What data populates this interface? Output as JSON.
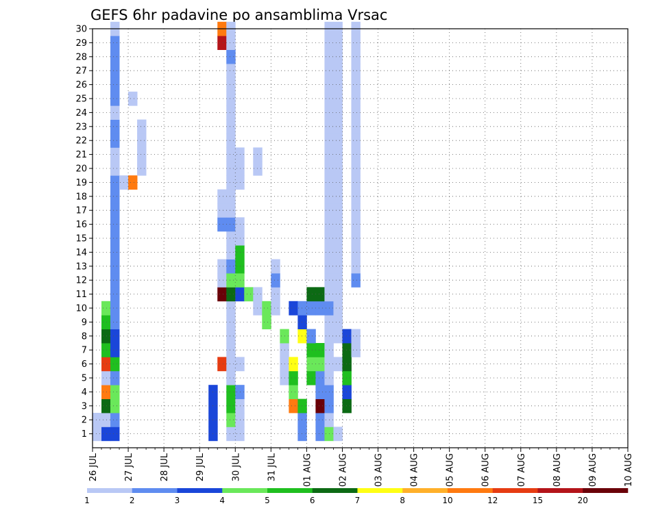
{
  "chart_data": {
    "type": "heatmap",
    "title": "GEFS 6hr padavine po ansamblima Vrsac",
    "xlabel": "",
    "ylabel": "",
    "x_ticks": [
      "26 JUL",
      "27 JUL",
      "28 JUL",
      "29 JUL",
      "30 JUL",
      "31 JUL",
      "01 AUG",
      "02 AUG",
      "03 AUG",
      "04 AUG",
      "05 AUG",
      "06 AUG",
      "07 AUG",
      "08 AUG",
      "09 AUG",
      "10 AUG"
    ],
    "y_ticks": [
      1,
      2,
      3,
      4,
      5,
      6,
      7,
      8,
      9,
      10,
      11,
      12,
      13,
      14,
      15,
      16,
      17,
      18,
      19,
      20,
      21,
      22,
      23,
      24,
      25,
      26,
      27,
      28,
      29,
      30
    ],
    "grid": true,
    "colorbar": {
      "position": "bottom",
      "levels": [
        "1",
        "2",
        "3",
        "4",
        "5",
        "6",
        "7",
        "8",
        "10",
        "12",
        "15",
        "20"
      ],
      "colors": [
        "#b9c8f5",
        "#5f8cf0",
        "#1a46d9",
        "#6ae85a",
        "#1fbf1f",
        "#0c6a14",
        "#ffff14",
        "#ffb02a",
        "#ff7a10",
        "#e63c12",
        "#b4141a",
        "#6a0008"
      ]
    },
    "step_hours": 6,
    "cells": [
      [
        1,
        1,
        0
      ],
      [
        1,
        2,
        0
      ],
      [
        2,
        1,
        2
      ],
      [
        2,
        2,
        0
      ],
      [
        2,
        3,
        5
      ],
      [
        2,
        4,
        8
      ],
      [
        2,
        5,
        0
      ],
      [
        2,
        6,
        9
      ],
      [
        2,
        7,
        4
      ],
      [
        2,
        8,
        5
      ],
      [
        2,
        9,
        4
      ],
      [
        2,
        10,
        3
      ],
      [
        3,
        1,
        2
      ],
      [
        3,
        2,
        1
      ],
      [
        3,
        3,
        3
      ],
      [
        3,
        4,
        3
      ],
      [
        3,
        5,
        1
      ],
      [
        3,
        6,
        4
      ],
      [
        3,
        7,
        2
      ],
      [
        3,
        8,
        2
      ],
      [
        3,
        9,
        1
      ],
      [
        3,
        10,
        1
      ],
      [
        3,
        11,
        1
      ],
      [
        3,
        12,
        1
      ],
      [
        3,
        13,
        1
      ],
      [
        3,
        14,
        1
      ],
      [
        3,
        15,
        1
      ],
      [
        3,
        16,
        1
      ],
      [
        3,
        17,
        1
      ],
      [
        3,
        18,
        1
      ],
      [
        3,
        19,
        1
      ],
      [
        3,
        20,
        0
      ],
      [
        3,
        21,
        0
      ],
      [
        3,
        22,
        1
      ],
      [
        3,
        23,
        1
      ],
      [
        3,
        24,
        0
      ],
      [
        3,
        25,
        1
      ],
      [
        3,
        26,
        1
      ],
      [
        3,
        27,
        1
      ],
      [
        3,
        28,
        1
      ],
      [
        3,
        29,
        1
      ],
      [
        3,
        30,
        0
      ],
      [
        4,
        19,
        0
      ],
      [
        5,
        19,
        8
      ],
      [
        5,
        25,
        0
      ],
      [
        6,
        20,
        0
      ],
      [
        6,
        21,
        0
      ],
      [
        6,
        22,
        0
      ],
      [
        6,
        23,
        0
      ],
      [
        14,
        1,
        2
      ],
      [
        14,
        2,
        2
      ],
      [
        14,
        3,
        2
      ],
      [
        14,
        4,
        2
      ],
      [
        15,
        6,
        9
      ],
      [
        15,
        11,
        11
      ],
      [
        15,
        12,
        0
      ],
      [
        15,
        13,
        0
      ],
      [
        15,
        16,
        1
      ],
      [
        15,
        17,
        0
      ],
      [
        15,
        18,
        0
      ],
      [
        15,
        29,
        10
      ],
      [
        15,
        30,
        8
      ],
      [
        16,
        1,
        0
      ],
      [
        16,
        2,
        3
      ],
      [
        16,
        3,
        4
      ],
      [
        16,
        4,
        4
      ],
      [
        16,
        5,
        0
      ],
      [
        16,
        6,
        0
      ],
      [
        16,
        7,
        0
      ],
      [
        16,
        8,
        0
      ],
      [
        16,
        9,
        0
      ],
      [
        16,
        10,
        0
      ],
      [
        16,
        11,
        5
      ],
      [
        16,
        12,
        3
      ],
      [
        16,
        13,
        1
      ],
      [
        16,
        14,
        0
      ],
      [
        16,
        15,
        0
      ],
      [
        16,
        16,
        1
      ],
      [
        16,
        17,
        0
      ],
      [
        16,
        18,
        0
      ],
      [
        16,
        19,
        0
      ],
      [
        16,
        20,
        0
      ],
      [
        16,
        21,
        0
      ],
      [
        16,
        22,
        0
      ],
      [
        16,
        23,
        0
      ],
      [
        16,
        24,
        0
      ],
      [
        16,
        25,
        0
      ],
      [
        16,
        26,
        0
      ],
      [
        16,
        27,
        0
      ],
      [
        16,
        28,
        1
      ],
      [
        16,
        29,
        0
      ],
      [
        16,
        30,
        0
      ],
      [
        17,
        1,
        0
      ],
      [
        17,
        2,
        0
      ],
      [
        17,
        3,
        0
      ],
      [
        17,
        4,
        1
      ],
      [
        17,
        6,
        0
      ],
      [
        17,
        11,
        2
      ],
      [
        17,
        12,
        3
      ],
      [
        17,
        13,
        4
      ],
      [
        17,
        14,
        4
      ],
      [
        17,
        15,
        0
      ],
      [
        17,
        16,
        0
      ],
      [
        17,
        19,
        0
      ],
      [
        17,
        20,
        0
      ],
      [
        17,
        21,
        0
      ],
      [
        18,
        11,
        3
      ],
      [
        19,
        10,
        0
      ],
      [
        19,
        11,
        0
      ],
      [
        19,
        20,
        0
      ],
      [
        19,
        21,
        0
      ],
      [
        20,
        9,
        3
      ],
      [
        20,
        10,
        3
      ],
      [
        21,
        10,
        0
      ],
      [
        21,
        11,
        0
      ],
      [
        21,
        12,
        1
      ],
      [
        21,
        13,
        0
      ],
      [
        22,
        5,
        0
      ],
      [
        22,
        6,
        0
      ],
      [
        22,
        7,
        0
      ],
      [
        22,
        8,
        3
      ],
      [
        23,
        3,
        8
      ],
      [
        23,
        4,
        3
      ],
      [
        23,
        5,
        4
      ],
      [
        23,
        6,
        6
      ],
      [
        23,
        10,
        2
      ],
      [
        24,
        1,
        1
      ],
      [
        24,
        2,
        1
      ],
      [
        24,
        3,
        4
      ],
      [
        24,
        8,
        6
      ],
      [
        24,
        9,
        2
      ],
      [
        24,
        10,
        1
      ],
      [
        25,
        5,
        4
      ],
      [
        25,
        6,
        3
      ],
      [
        25,
        7,
        4
      ],
      [
        25,
        8,
        1
      ],
      [
        25,
        10,
        1
      ],
      [
        25,
        11,
        5
      ],
      [
        26,
        1,
        1
      ],
      [
        26,
        2,
        1
      ],
      [
        26,
        3,
        11
      ],
      [
        26,
        4,
        1
      ],
      [
        26,
        5,
        1
      ],
      [
        26,
        6,
        3
      ],
      [
        26,
        7,
        4
      ],
      [
        26,
        10,
        1
      ],
      [
        26,
        11,
        5
      ],
      [
        27,
        1,
        3
      ],
      [
        27,
        2,
        0
      ],
      [
        27,
        3,
        1
      ],
      [
        27,
        4,
        1
      ],
      [
        27,
        5,
        0
      ],
      [
        27,
        6,
        0
      ],
      [
        27,
        7,
        0
      ],
      [
        27,
        8,
        0
      ],
      [
        27,
        9,
        0
      ],
      [
        27,
        10,
        1
      ],
      [
        27,
        11,
        0
      ],
      [
        27,
        12,
        0
      ],
      [
        27,
        13,
        0
      ],
      [
        27,
        14,
        0
      ],
      [
        27,
        15,
        0
      ],
      [
        27,
        16,
        0
      ],
      [
        27,
        17,
        0
      ],
      [
        27,
        18,
        0
      ],
      [
        27,
        19,
        0
      ],
      [
        27,
        20,
        0
      ],
      [
        27,
        21,
        0
      ],
      [
        27,
        22,
        0
      ],
      [
        27,
        23,
        0
      ],
      [
        27,
        24,
        0
      ],
      [
        27,
        25,
        0
      ],
      [
        27,
        26,
        0
      ],
      [
        27,
        27,
        0
      ],
      [
        27,
        28,
        0
      ],
      [
        27,
        29,
        0
      ],
      [
        27,
        30,
        0
      ],
      [
        28,
        1,
        0
      ],
      [
        28,
        6,
        0
      ],
      [
        28,
        8,
        0
      ],
      [
        28,
        9,
        0
      ],
      [
        28,
        10,
        0
      ],
      [
        28,
        11,
        0
      ],
      [
        28,
        12,
        0
      ],
      [
        28,
        13,
        0
      ],
      [
        28,
        14,
        0
      ],
      [
        28,
        15,
        0
      ],
      [
        28,
        16,
        0
      ],
      [
        28,
        17,
        0
      ],
      [
        28,
        18,
        0
      ],
      [
        28,
        19,
        0
      ],
      [
        28,
        20,
        0
      ],
      [
        28,
        21,
        0
      ],
      [
        28,
        22,
        0
      ],
      [
        28,
        23,
        0
      ],
      [
        28,
        24,
        0
      ],
      [
        28,
        25,
        0
      ],
      [
        28,
        26,
        0
      ],
      [
        28,
        27,
        0
      ],
      [
        28,
        28,
        0
      ],
      [
        28,
        29,
        0
      ],
      [
        28,
        30,
        0
      ],
      [
        29,
        3,
        5
      ],
      [
        29,
        4,
        2
      ],
      [
        29,
        5,
        4
      ],
      [
        29,
        6,
        5
      ],
      [
        29,
        7,
        5
      ],
      [
        29,
        8,
        2
      ],
      [
        30,
        7,
        0
      ],
      [
        30,
        8,
        0
      ],
      [
        30,
        12,
        1
      ],
      [
        30,
        13,
        0
      ],
      [
        30,
        14,
        0
      ],
      [
        30,
        15,
        0
      ],
      [
        30,
        16,
        0
      ],
      [
        30,
        17,
        0
      ],
      [
        30,
        18,
        0
      ],
      [
        30,
        19,
        0
      ],
      [
        30,
        20,
        0
      ],
      [
        30,
        21,
        0
      ],
      [
        30,
        22,
        0
      ],
      [
        30,
        23,
        0
      ],
      [
        30,
        24,
        0
      ],
      [
        30,
        25,
        0
      ],
      [
        30,
        26,
        0
      ],
      [
        30,
        27,
        0
      ],
      [
        30,
        28,
        0
      ],
      [
        30,
        29,
        0
      ],
      [
        30,
        30,
        0
      ]
    ]
  }
}
